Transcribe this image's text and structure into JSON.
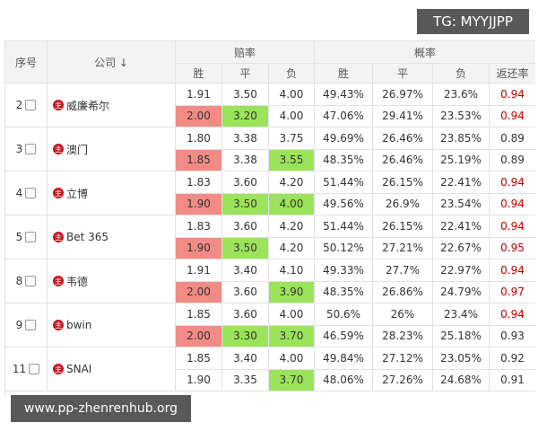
{
  "header": {
    "no": "序号",
    "company": "公司 ↓",
    "odds": "赔率",
    "prob": "概率",
    "sub": [
      "胜",
      "平",
      "负",
      "胜",
      "平",
      "负",
      "返还率"
    ]
  },
  "badge": "主",
  "companies": [
    {
      "no": "2",
      "name": "威廉希尔",
      "rows": [
        {
          "cells": [
            "1.91",
            "3.50",
            "4.00",
            "49.43%",
            "26.97%",
            "23.6%",
            "0.94"
          ],
          "fills": [
            null,
            null,
            null
          ],
          "rate_color": "#c00000"
        },
        {
          "cells": [
            "2.00",
            "3.20",
            "4.00",
            "47.06%",
            "29.41%",
            "23.53%",
            "0.94"
          ],
          "fills": [
            "#f28b86",
            "#9be35a",
            null
          ],
          "rate_color": "#c00000"
        }
      ]
    },
    {
      "no": "3",
      "name": "澳门",
      "rows": [
        {
          "cells": [
            "1.80",
            "3.38",
            "3.75",
            "49.69%",
            "26.46%",
            "23.85%",
            "0.89"
          ],
          "fills": [
            null,
            null,
            null
          ],
          "rate_color": "#333333"
        },
        {
          "cells": [
            "1.85",
            "3.38",
            "3.55",
            "48.35%",
            "26.46%",
            "25.19%",
            "0.89"
          ],
          "fills": [
            "#f28b86",
            null,
            "#9be35a"
          ],
          "rate_color": "#333333"
        }
      ]
    },
    {
      "no": "4",
      "name": "立博",
      "rows": [
        {
          "cells": [
            "1.83",
            "3.60",
            "4.20",
            "51.44%",
            "26.15%",
            "22.41%",
            "0.94"
          ],
          "fills": [
            null,
            null,
            null
          ],
          "rate_color": "#c00000"
        },
        {
          "cells": [
            "1.90",
            "3.50",
            "4.00",
            "49.56%",
            "26.9%",
            "23.54%",
            "0.94"
          ],
          "fills": [
            "#f28b86",
            "#9be35a",
            "#9be35a"
          ],
          "rate_color": "#c00000"
        }
      ]
    },
    {
      "no": "5",
      "name": "Bet 365",
      "rows": [
        {
          "cells": [
            "1.83",
            "3.60",
            "4.20",
            "51.44%",
            "26.15%",
            "22.41%",
            "0.94"
          ],
          "fills": [
            null,
            null,
            null
          ],
          "rate_color": "#c00000"
        },
        {
          "cells": [
            "1.90",
            "3.50",
            "4.20",
            "50.12%",
            "27.21%",
            "22.67%",
            "0.95"
          ],
          "fills": [
            "#f28b86",
            "#9be35a",
            null
          ],
          "rate_color": "#c00000"
        }
      ]
    },
    {
      "no": "8",
      "name": "韦德",
      "rows": [
        {
          "cells": [
            "1.91",
            "3.40",
            "4.10",
            "49.33%",
            "27.7%",
            "22.97%",
            "0.94"
          ],
          "fills": [
            null,
            null,
            null
          ],
          "rate_color": "#c00000"
        },
        {
          "cells": [
            "2.00",
            "3.60",
            "3.90",
            "48.35%",
            "26.86%",
            "24.79%",
            "0.97"
          ],
          "fills": [
            "#f28b86",
            null,
            "#9be35a"
          ],
          "rate_color": "#c00000"
        }
      ]
    },
    {
      "no": "9",
      "name": "bwin",
      "rows": [
        {
          "cells": [
            "1.85",
            "3.60",
            "4.00",
            "50.6%",
            "26%",
            "23.4%",
            "0.94"
          ],
          "fills": [
            null,
            null,
            null
          ],
          "rate_color": "#c00000"
        },
        {
          "cells": [
            "2.00",
            "3.30",
            "3.70",
            "46.59%",
            "28.23%",
            "25.18%",
            "0.93"
          ],
          "fills": [
            "#f28b86",
            "#9be35a",
            "#9be35a"
          ],
          "rate_color": "#333333"
        }
      ]
    },
    {
      "no": "11",
      "name": "SNAI",
      "rows": [
        {
          "cells": [
            "1.85",
            "3.40",
            "4.00",
            "49.84%",
            "27.12%",
            "23.05%",
            "0.92"
          ],
          "fills": [
            null,
            null,
            null
          ],
          "rate_color": "#333333"
        },
        {
          "cells": [
            "1.90",
            "3.35",
            "3.70",
            "48.06%",
            "27.26%",
            "24.68%",
            "0.91"
          ],
          "fills": [
            null,
            null,
            "#9be35a"
          ],
          "rate_color": "#333333"
        }
      ]
    }
  ],
  "watermark_top": "TG: MYYJJPP",
  "watermark_bottom": "www.pp-zhenrenhub.org"
}
